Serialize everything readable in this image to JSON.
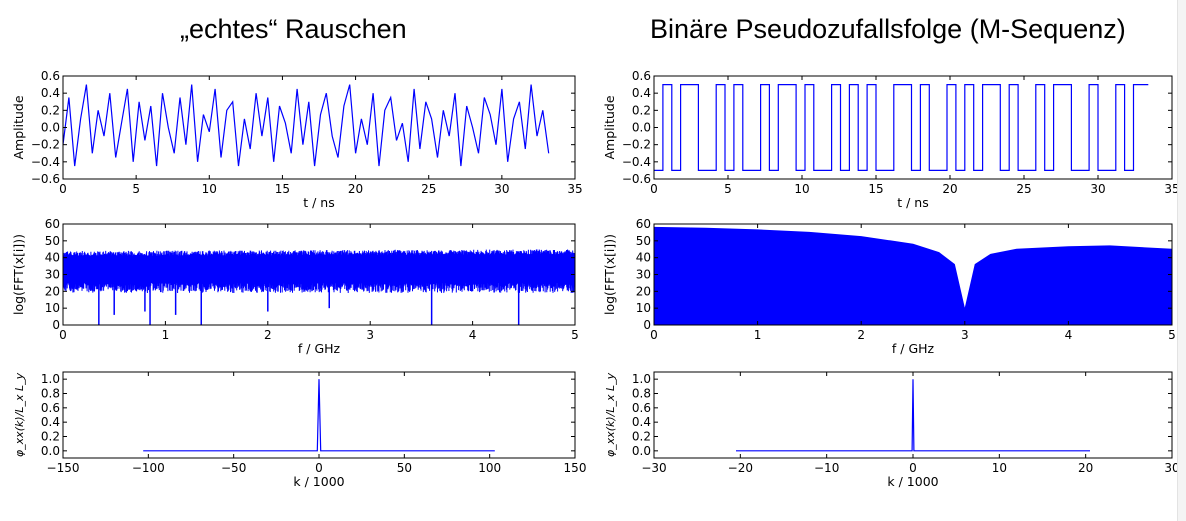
{
  "columns": [
    {
      "title": "„echtes“ Rauschen"
    },
    {
      "title": "Binäre Pseudozufallsfolge (M-Sequenz)"
    }
  ],
  "chart_data": [
    {
      "id": "noise-time",
      "type": "line",
      "xlabel": "t / ns",
      "ylabel": "Amplitude",
      "xlim": [
        0,
        35
      ],
      "ylim": [
        -0.6,
        0.6
      ],
      "xticks": [
        0,
        5,
        10,
        15,
        20,
        25,
        30,
        35
      ],
      "yticks": [
        -0.6,
        -0.4,
        -0.2,
        0.0,
        0.2,
        0.4,
        0.6
      ],
      "series": [
        {
          "color": "#0000ff",
          "x": [
            0.0,
            0.4,
            0.8,
            1.2,
            1.6,
            2.0,
            2.4,
            2.8,
            3.2,
            3.6,
            4.0,
            4.4,
            4.8,
            5.2,
            5.6,
            6.0,
            6.4,
            6.8,
            7.2,
            7.6,
            8.0,
            8.4,
            8.8,
            9.2,
            9.6,
            10.0,
            10.4,
            10.8,
            11.2,
            11.6,
            12.0,
            12.4,
            12.8,
            13.2,
            13.6,
            14.0,
            14.4,
            14.8,
            15.2,
            15.6,
            16.0,
            16.4,
            16.8,
            17.2,
            17.6,
            18.0,
            18.4,
            18.8,
            19.2,
            19.6,
            20.0,
            20.4,
            20.8,
            21.2,
            21.6,
            22.0,
            22.4,
            22.8,
            23.2,
            23.6,
            24.0,
            24.4,
            24.8,
            25.2,
            25.6,
            26.0,
            26.4,
            26.8,
            27.2,
            27.6,
            28.0,
            28.4,
            28.8,
            29.2,
            29.6,
            30.0,
            30.4,
            30.8,
            31.2,
            31.6,
            32.0,
            32.4,
            32.8,
            33.2
          ],
          "y": [
            -0.2,
            0.35,
            -0.45,
            0.1,
            0.5,
            -0.3,
            0.2,
            -0.1,
            0.4,
            -0.35,
            0.05,
            0.45,
            -0.4,
            0.3,
            -0.15,
            0.25,
            -0.45,
            0.4,
            0.0,
            -0.3,
            0.35,
            -0.2,
            0.5,
            -0.4,
            0.15,
            -0.05,
            0.45,
            -0.35,
            0.2,
            0.3,
            -0.45,
            0.1,
            -0.25,
            0.4,
            -0.1,
            0.35,
            -0.4,
            0.25,
            0.05,
            -0.3,
            0.45,
            -0.2,
            0.3,
            -0.45,
            0.15,
            0.4,
            -0.1,
            -0.35,
            0.25,
            0.5,
            -0.3,
            0.1,
            -0.2,
            0.4,
            -0.45,
            0.2,
            0.35,
            -0.15,
            0.05,
            -0.4,
            0.45,
            -0.25,
            0.3,
            0.1,
            -0.35,
            0.2,
            -0.1,
            0.4,
            -0.45,
            0.25,
            0.0,
            -0.3,
            0.35,
            0.15,
            -0.2,
            0.45,
            -0.4,
            0.1,
            0.3,
            -0.25,
            0.5,
            -0.1,
            0.2,
            -0.3
          ]
        }
      ]
    },
    {
      "id": "noise-fft",
      "type": "area",
      "xlabel": "f / GHz",
      "ylabel": "log(FFT(x[i]))",
      "xlim": [
        0,
        5
      ],
      "ylim": [
        0,
        60
      ],
      "xticks": [
        0,
        1,
        2,
        3,
        4,
        5
      ],
      "yticks": [
        0,
        10,
        20,
        30,
        40,
        50,
        60
      ],
      "band": {
        "x": [
          0,
          5
        ],
        "upper": [
          44,
          45
        ],
        "lower": [
          25,
          25
        ]
      },
      "dips": {
        "x": [
          0.35,
          0.5,
          0.8,
          0.85,
          1.1,
          1.35,
          2.0,
          2.6,
          3.6,
          4.45
        ],
        "y": [
          0,
          6,
          8,
          0,
          6,
          0,
          8,
          10,
          0,
          0
        ]
      }
    },
    {
      "id": "noise-acf",
      "type": "line",
      "xlabel": "k / 1000",
      "ylabel": "φ_xx(k)/L_x L_y",
      "xlim": [
        -150,
        150
      ],
      "ylim": [
        -0.1,
        1.1
      ],
      "xticks": [
        -150,
        -100,
        -50,
        0,
        50,
        100,
        150
      ],
      "yticks": [
        0.0,
        0.2,
        0.4,
        0.6,
        0.8,
        1.0
      ],
      "series": [
        {
          "color": "#0000ff",
          "x": [
            -103,
            -1,
            0,
            1,
            103
          ],
          "y": [
            0.0,
            0.0,
            1.0,
            0.0,
            0.0
          ]
        }
      ]
    },
    {
      "id": "mseq-time",
      "type": "line",
      "xlabel": "t / ns",
      "ylabel": "Amplitude",
      "xlim": [
        0,
        35
      ],
      "ylim": [
        -0.6,
        0.6
      ],
      "xticks": [
        0,
        5,
        10,
        15,
        20,
        25,
        30,
        35
      ],
      "yticks": [
        -0.6,
        -0.4,
        -0.2,
        0.0,
        0.2,
        0.4,
        0.6
      ],
      "series": [
        {
          "color": "#0000ff",
          "x": [
            0.0,
            0.6,
            1.2,
            1.8,
            2.4,
            3.0,
            3.6,
            4.2,
            4.8,
            5.4,
            6.0,
            6.6,
            7.2,
            7.8,
            8.4,
            9.0,
            9.6,
            10.2,
            10.8,
            11.4,
            12.0,
            12.6,
            13.2,
            13.8,
            14.4,
            15.0,
            15.6,
            16.2,
            16.8,
            17.4,
            18.0,
            18.6,
            19.2,
            19.8,
            20.4,
            21.0,
            21.6,
            22.2,
            22.8,
            23.4,
            24.0,
            24.6,
            25.2,
            25.8,
            26.4,
            27.0,
            27.6,
            28.2,
            28.8,
            29.4,
            30.0,
            30.6,
            31.2,
            31.8,
            32.4,
            33.0,
            33.4
          ],
          "y": [
            -0.5,
            0.5,
            -0.5,
            0.5,
            0.5,
            -0.5,
            -0.5,
            0.5,
            -0.5,
            0.5,
            -0.5,
            -0.5,
            0.5,
            -0.5,
            0.5,
            0.5,
            -0.5,
            0.5,
            -0.5,
            -0.5,
            0.5,
            -0.5,
            0.5,
            -0.5,
            0.5,
            -0.5,
            -0.5,
            0.5,
            0.5,
            -0.5,
            0.5,
            -0.5,
            -0.5,
            0.5,
            -0.5,
            0.5,
            -0.5,
            0.5,
            0.5,
            -0.5,
            0.5,
            -0.5,
            -0.5,
            0.5,
            -0.5,
            0.5,
            0.5,
            -0.5,
            -0.5,
            0.5,
            -0.5,
            -0.5,
            0.5,
            -0.5,
            0.5,
            0.5,
            0.5
          ]
        }
      ]
    },
    {
      "id": "mseq-fft",
      "type": "area",
      "xlabel": "f / GHz",
      "ylabel": "log(FFT(x[i]))",
      "xlim": [
        0,
        5
      ],
      "ylim": [
        0,
        60
      ],
      "xticks": [
        0,
        1,
        2,
        3,
        4,
        5
      ],
      "yticks": [
        0,
        10,
        20,
        30,
        40,
        50,
        60
      ],
      "upper": {
        "x": [
          0,
          0.5,
          1,
          1.5,
          2,
          2.5,
          2.75,
          2.9,
          3.0,
          3.1,
          3.25,
          3.5,
          4.0,
          4.4,
          5.0
        ],
        "y": [
          58,
          57.5,
          56.5,
          55,
          52.5,
          48,
          43,
          36,
          9,
          36,
          42,
          45,
          46.5,
          47,
          45
        ]
      }
    },
    {
      "id": "mseq-acf",
      "type": "line",
      "xlabel": "k / 1000",
      "ylabel": "φ_xx(k)/L_x L_y",
      "xlim": [
        -30,
        30
      ],
      "ylim": [
        -0.1,
        1.1
      ],
      "xticks": [
        -30,
        -20,
        -10,
        0,
        10,
        20,
        30
      ],
      "yticks": [
        0.0,
        0.2,
        0.4,
        0.6,
        0.8,
        1.0
      ],
      "series": [
        {
          "color": "#0000ff",
          "x": [
            -20.5,
            -0.1,
            0,
            0.1,
            20.5
          ],
          "y": [
            0.0,
            0.0,
            1.0,
            0.0,
            0.0
          ]
        }
      ]
    }
  ]
}
